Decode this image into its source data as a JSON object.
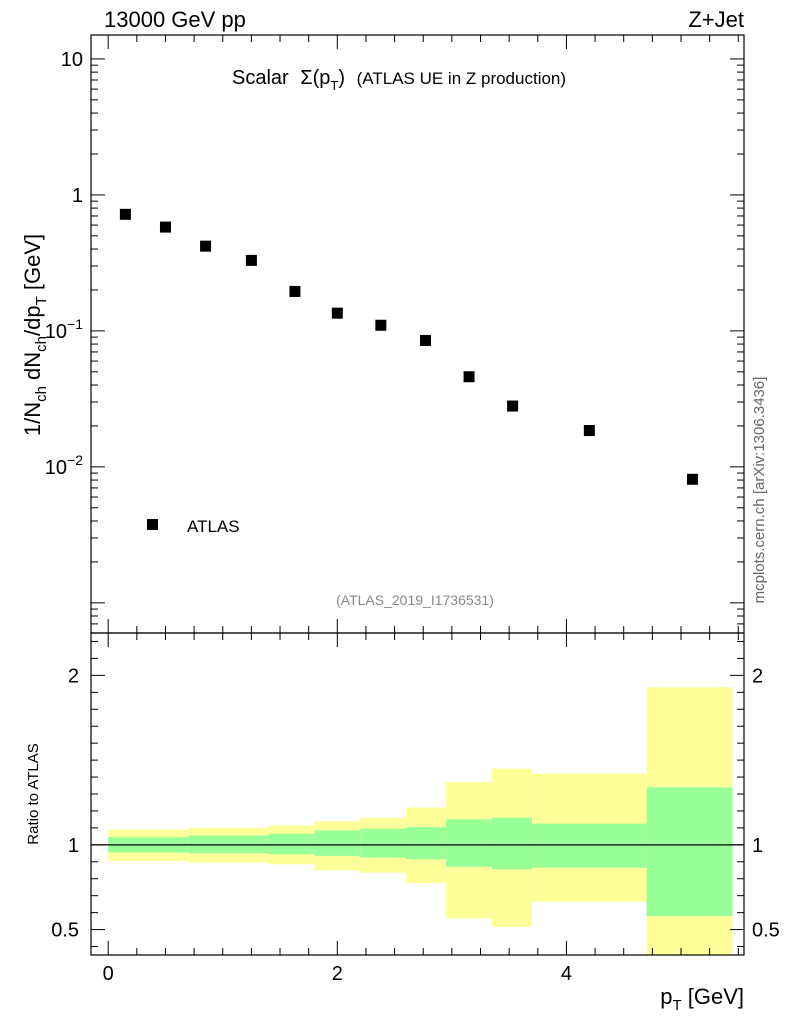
{
  "header": {
    "left_label": "13000 GeV pp",
    "right_label": "Z+Jet",
    "side_label": "mcplots.cern.ch [arXiv:1306.3436]",
    "analysis_id": "(ATLAS_2019_I1736531)"
  },
  "colors": {
    "marker": "#000000",
    "band_outer": "#ffff99",
    "band_inner": "#99ff99",
    "analysis_text": "#888888",
    "side_text": "#666666"
  },
  "chart_data": [
    {
      "type": "scatter",
      "title_main": "Scalar",
      "title_symbol": "Σ(p",
      "title_sub": "T",
      "title_close": ")",
      "title_rest": "(ATLAS UE in Z production)",
      "ylabel": "1/N_ch dN_ch/dp_T [GeV]",
      "ylabel_parts": {
        "p1": "1/N",
        "s1": "ch",
        "p2": " dN",
        "s2": "ch",
        "p3": "/dp",
        "s3": "T",
        "p4": " [GeV]"
      },
      "yscale": "log",
      "ylim": [
        0.0006,
        15
      ],
      "xlim": [
        -0.15,
        5.55
      ],
      "ytick_labels": [
        {
          "value": 10,
          "base": "10",
          "exp": ""
        },
        {
          "value": 1,
          "base": "1",
          "exp": ""
        },
        {
          "value": 0.1,
          "base": "10",
          "exp": "−1"
        },
        {
          "value": 0.01,
          "base": "10",
          "exp": "−2"
        }
      ],
      "series": [
        {
          "name": "ATLAS",
          "x": [
            0.15,
            0.5,
            0.85,
            1.25,
            1.63,
            2.0,
            2.38,
            2.77,
            3.15,
            3.53,
            4.2,
            5.1
          ],
          "y": [
            0.72,
            0.58,
            0.42,
            0.33,
            0.195,
            0.135,
            0.11,
            0.085,
            0.046,
            0.028,
            0.0185,
            0.0081
          ]
        }
      ],
      "legend": {
        "label": "ATLAS",
        "placement": "bottom-left"
      }
    },
    {
      "type": "area",
      "ylabel": "Ratio to ATLAS",
      "xlabel": "p_T [GeV]",
      "xlabel_parts": {
        "p": "p",
        "s": "T",
        "rest": " [GeV]"
      },
      "ylim": [
        0.35,
        2.25
      ],
      "xlim": [
        -0.15,
        5.55
      ],
      "ytick_labels": [
        "0.5",
        "1",
        "2"
      ],
      "ytick_values": [
        0.5,
        1,
        2
      ],
      "xtick_labels": [
        "0",
        "2",
        "4"
      ],
      "xtick_values": [
        0,
        2,
        4
      ],
      "reference_line": 1,
      "bins": {
        "edges": [
          0.0,
          0.7,
          1.4,
          1.8,
          2.2,
          2.6,
          2.95,
          3.35,
          3.7,
          4.7,
          5.45
        ],
        "inner_low": [
          0.955,
          0.95,
          0.945,
          0.935,
          0.925,
          0.915,
          0.87,
          0.855,
          0.865,
          0.58
        ],
        "inner_high": [
          1.045,
          1.055,
          1.065,
          1.085,
          1.095,
          1.105,
          1.15,
          1.16,
          1.125,
          1.34
        ],
        "outer_low": [
          0.905,
          0.895,
          0.885,
          0.85,
          0.835,
          0.775,
          0.565,
          0.515,
          0.665,
          0.33
        ],
        "outer_high": [
          1.09,
          1.1,
          1.115,
          1.14,
          1.16,
          1.22,
          1.37,
          1.45,
          1.42,
          1.93
        ]
      }
    }
  ]
}
